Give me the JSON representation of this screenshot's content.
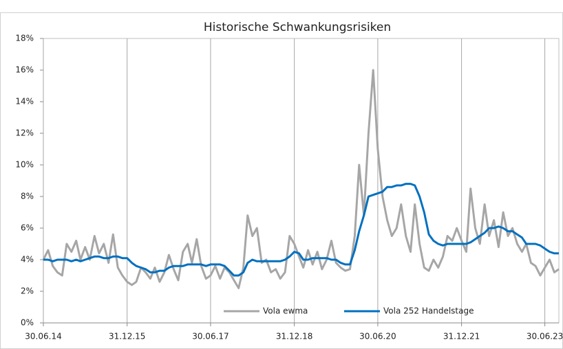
{
  "chart_data": {
    "type": "line",
    "title": "Historische Schwankungsrisiken",
    "x": [
      "30.06.14",
      "31.07.14",
      "31.08.14",
      "30.09.14",
      "31.10.14",
      "30.11.14",
      "31.12.14",
      "31.01.15",
      "28.02.15",
      "31.03.15",
      "30.04.15",
      "31.05.15",
      "30.06.15",
      "31.07.15",
      "31.08.15",
      "30.09.15",
      "31.10.15",
      "30.11.15",
      "31.12.15",
      "31.01.16",
      "29.02.16",
      "31.03.16",
      "30.04.16",
      "31.05.16",
      "30.06.16",
      "31.07.16",
      "31.08.16",
      "30.09.16",
      "31.10.16",
      "30.11.16",
      "31.12.16",
      "31.01.17",
      "28.02.17",
      "31.03.17",
      "30.04.17",
      "31.05.17",
      "30.06.17",
      "31.07.17",
      "31.08.17",
      "30.09.17",
      "31.10.17",
      "30.11.17",
      "31.12.17",
      "31.01.18",
      "28.02.18",
      "31.03.18",
      "30.04.18",
      "31.05.18",
      "30.06.18",
      "31.07.18",
      "31.08.18",
      "30.09.18",
      "31.10.18",
      "30.11.18",
      "31.12.18",
      "31.01.19",
      "28.02.19",
      "31.03.19",
      "30.04.19",
      "31.05.19",
      "30.06.19",
      "31.07.19",
      "31.08.19",
      "30.09.19",
      "31.10.19",
      "30.11.19",
      "31.12.19",
      "31.01.20",
      "29.02.20",
      "31.03.20",
      "30.04.20",
      "31.05.20",
      "30.06.20",
      "31.07.20",
      "31.08.20",
      "30.09.20",
      "31.10.20",
      "30.11.20",
      "31.12.20",
      "31.01.21",
      "28.02.21",
      "31.03.21",
      "30.04.21",
      "31.05.21",
      "30.06.21",
      "31.07.21",
      "31.08.21",
      "30.09.21",
      "31.10.21",
      "30.11.21",
      "31.12.21",
      "31.01.22",
      "28.02.22",
      "31.03.22",
      "30.04.22",
      "31.05.22",
      "30.06.22",
      "31.07.22",
      "31.08.22",
      "30.09.22",
      "31.10.22",
      "30.11.22",
      "31.12.22",
      "31.01.23",
      "28.02.23",
      "31.03.23",
      "30.04.23",
      "31.05.23",
      "30.06.23",
      "31.07.23",
      "31.08.23",
      "30.09.23"
    ],
    "series": [
      {
        "name": "Vola ewma",
        "color": "#a6a6a6",
        "values": [
          4.0,
          4.6,
          3.6,
          3.2,
          3.0,
          5.0,
          4.5,
          5.2,
          4.0,
          4.8,
          4.0,
          5.5,
          4.4,
          5.0,
          3.8,
          5.6,
          3.5,
          3.0,
          2.6,
          2.4,
          2.6,
          3.5,
          3.2,
          2.8,
          3.5,
          2.6,
          3.2,
          4.3,
          3.4,
          2.7,
          4.5,
          5.0,
          3.8,
          5.3,
          3.6,
          2.8,
          3.0,
          3.6,
          2.8,
          3.5,
          3.2,
          2.7,
          2.2,
          3.5,
          6.8,
          5.5,
          6.0,
          3.8,
          4.0,
          3.2,
          3.4,
          2.8,
          3.2,
          5.5,
          5.0,
          4.2,
          3.5,
          4.6,
          3.7,
          4.5,
          3.4,
          4.0,
          5.2,
          3.8,
          3.5,
          3.3,
          3.4,
          5.5,
          10.0,
          6.8,
          12.0,
          16.0,
          11.0,
          8.0,
          6.5,
          5.5,
          6.0,
          7.5,
          5.5,
          4.5,
          7.5,
          5.0,
          3.5,
          3.3,
          4.0,
          3.5,
          4.2,
          5.5,
          5.2,
          6.0,
          5.2,
          4.5,
          8.5,
          6.0,
          5.0,
          7.5,
          5.5,
          6.5,
          4.8,
          7.0,
          5.5,
          6.0,
          5.0,
          4.5,
          5.0,
          3.8,
          3.6,
          3.0,
          3.5,
          4.0,
          3.2,
          3.4
        ]
      },
      {
        "name": "Vola 252 Handelstage",
        "color": "#0070c0",
        "values": [
          4.0,
          4.0,
          3.9,
          4.0,
          4.0,
          4.0,
          3.9,
          4.0,
          3.9,
          4.0,
          4.1,
          4.2,
          4.2,
          4.1,
          4.1,
          4.2,
          4.2,
          4.1,
          4.1,
          3.8,
          3.6,
          3.5,
          3.4,
          3.2,
          3.2,
          3.3,
          3.3,
          3.5,
          3.6,
          3.6,
          3.6,
          3.7,
          3.7,
          3.7,
          3.7,
          3.6,
          3.7,
          3.7,
          3.7,
          3.6,
          3.3,
          3.0,
          3.0,
          3.2,
          3.8,
          4.0,
          3.9,
          3.9,
          3.9,
          3.9,
          3.9,
          3.9,
          4.0,
          4.2,
          4.5,
          4.4,
          4.0,
          4.0,
          4.1,
          4.1,
          4.1,
          4.1,
          4.0,
          4.0,
          3.8,
          3.7,
          3.7,
          4.6,
          5.8,
          6.8,
          8.0,
          8.1,
          8.2,
          8.3,
          8.6,
          8.6,
          8.7,
          8.7,
          8.8,
          8.8,
          8.7,
          8.0,
          7.0,
          5.6,
          5.2,
          5.0,
          4.9,
          5.0,
          5.0,
          5.0,
          5.0,
          5.0,
          5.1,
          5.3,
          5.5,
          5.7,
          6.0,
          6.0,
          6.1,
          6.0,
          5.8,
          5.8,
          5.6,
          5.4,
          5.0,
          5.0,
          5.0,
          4.9,
          4.7,
          4.5,
          4.4,
          4.4
        ]
      }
    ],
    "xlim": [
      "30.06.14",
      "30.09.23"
    ],
    "xticks": [
      "30.06.14",
      "31.12.15",
      "30.06.17",
      "31.12.18",
      "30.06.20",
      "31.12.21",
      "30.06.23"
    ],
    "ylim": [
      0,
      18
    ],
    "yticks": [
      {
        "value": 0,
        "label": "0%"
      },
      {
        "value": 2,
        "label": "2%"
      },
      {
        "value": 4,
        "label": "4%"
      },
      {
        "value": 6,
        "label": "6%"
      },
      {
        "value": 8,
        "label": "8%"
      },
      {
        "value": 10,
        "label": "10%"
      },
      {
        "value": 12,
        "label": "12%"
      },
      {
        "value": 14,
        "label": "14%"
      },
      {
        "value": 16,
        "label": "16%"
      },
      {
        "value": 18,
        "label": "18%"
      }
    ],
    "grid": true
  }
}
